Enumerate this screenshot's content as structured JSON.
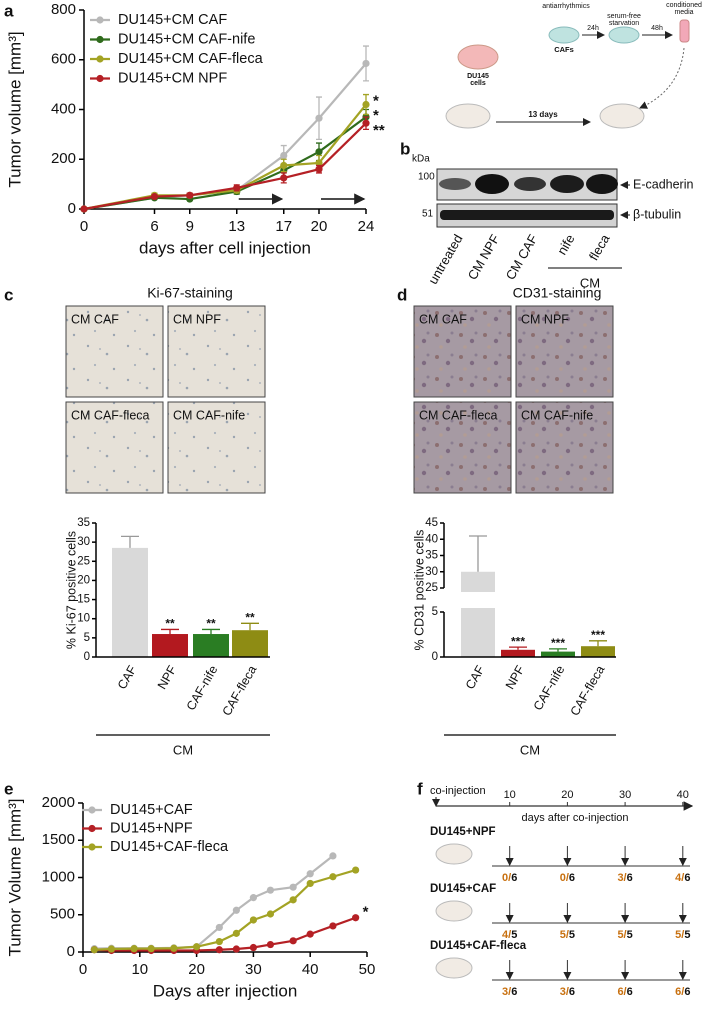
{
  "panel_labels": [
    "a",
    "b",
    "c",
    "d",
    "e",
    "f"
  ],
  "chart_data": [
    {
      "type": "line",
      "xlabel": "days after cell injection",
      "ylabel": "Tumor volume [mm³]",
      "x": [
        0,
        6,
        9,
        13,
        17,
        20,
        24
      ],
      "xlim": [
        0,
        24
      ],
      "xticks": [
        0,
        6,
        9,
        13,
        17,
        20,
        24
      ],
      "ylim": [
        0,
        800
      ],
      "yticks": [
        0,
        200,
        400,
        600,
        800
      ],
      "series": [
        {
          "name": "DU145+CM CAF",
          "color": "#b8b8b8",
          "values": [
            0,
            45,
            55,
            75,
            215,
            365,
            585
          ],
          "errors": [
            0,
            5,
            5,
            10,
            40,
            85,
            70
          ]
        },
        {
          "name": "DU145+CM CAF-nife",
          "color": "#2f6b1c",
          "values": [
            0,
            45,
            40,
            70,
            155,
            230,
            370
          ],
          "errors": [
            0,
            5,
            5,
            10,
            25,
            35,
            30
          ],
          "significance": "*"
        },
        {
          "name": "DU145+CM CAF-fleca",
          "color": "#a3a324",
          "values": [
            0,
            55,
            55,
            75,
            175,
            185,
            420
          ],
          "errors": [
            0,
            8,
            8,
            10,
            25,
            30,
            40
          ],
          "significance": "*"
        },
        {
          "name": "DU145+CM NPF",
          "color": "#b52025",
          "values": [
            0,
            50,
            55,
            85,
            125,
            160,
            345
          ],
          "errors": [
            0,
            5,
            8,
            12,
            20,
            15,
            25
          ],
          "significance": "**"
        }
      ]
    },
    {
      "type": "bar",
      "title": "Ki-67-staining",
      "image_labels": [
        "CM CAF",
        "CM NPF",
        "CM CAF-fleca",
        "CM CAF-nife"
      ],
      "ylabel": "% Ki-67 positive cells",
      "categories": [
        "CAF",
        "NPF",
        "CAF-nife",
        "CAF-fleca"
      ],
      "values": [
        28.5,
        6,
        6,
        7
      ],
      "errors": [
        3,
        1.2,
        1.2,
        1.8
      ],
      "significance": [
        null,
        "**",
        "**",
        "**"
      ],
      "colors": [
        "#d9d9d9",
        "#b3191f",
        "#2a7d23",
        "#8e8c14"
      ],
      "ylim": [
        0,
        35
      ],
      "yticks": [
        0,
        5,
        10,
        15,
        20,
        25,
        30,
        35
      ],
      "group_label": "CM"
    },
    {
      "type": "bar",
      "title": "CD31-staining",
      "image_labels": [
        "CM CAF",
        "CM NPF",
        "CM CAF-fleca",
        "CM CAF-nife"
      ],
      "ylabel": "% CD31 positive cells",
      "categories": [
        "CAF",
        "NPF",
        "CAF-nife",
        "CAF-fleca"
      ],
      "values": [
        30,
        0.8,
        0.6,
        1.2
      ],
      "errors": [
        11,
        0.3,
        0.3,
        0.6
      ],
      "significance": [
        null,
        "***",
        "***",
        "***"
      ],
      "colors": [
        "#d9d9d9",
        "#b3191f",
        "#2a7d23",
        "#8e8c14"
      ],
      "ylim": [
        0,
        45
      ],
      "yticks": [
        0,
        5,
        25,
        30,
        35,
        40,
        45
      ],
      "axis_break": [
        5,
        25
      ],
      "group_label": "CM"
    },
    {
      "type": "line",
      "xlabel": "Days after injection",
      "ylabel": "Tumor Volume [mm³]",
      "x": [
        2,
        5,
        9,
        12,
        16,
        20,
        24,
        27,
        30,
        33,
        37,
        40,
        44,
        48
      ],
      "xlim": [
        0,
        50
      ],
      "xticks": [
        0,
        10,
        20,
        30,
        40,
        50
      ],
      "ylim": [
        0,
        2000
      ],
      "yticks": [
        0,
        500,
        1000,
        1500,
        2000
      ],
      "series": [
        {
          "name": "DU145+CAF",
          "color": "#b8b8b8",
          "values": [
            45,
            50,
            50,
            50,
            55,
            70,
            330,
            560,
            730,
            830,
            870,
            1050,
            1290,
            null
          ]
        },
        {
          "name": "DU145+NPF",
          "color": "#b52025",
          "values": [
            30,
            20,
            20,
            20,
            20,
            20,
            30,
            40,
            60,
            100,
            150,
            240,
            350,
            460
          ],
          "significance": "*"
        },
        {
          "name": "DU145+CAF-fleca",
          "color": "#a3a324",
          "values": [
            30,
            40,
            45,
            45,
            50,
            70,
            140,
            250,
            430,
            510,
            700,
            920,
            1010,
            1100
          ]
        }
      ]
    }
  ],
  "panel_b": {
    "schematic": {
      "drug": "antiarrhythmics",
      "t1": "24h",
      "starvation": [
        "serum-free",
        "starvation"
      ],
      "t2": "48h",
      "media": [
        "conditioned",
        "media"
      ],
      "cafs": "CAFs",
      "cells": [
        "DU145",
        "cells"
      ],
      "days": "13 days"
    },
    "blot": {
      "unit": "kDa",
      "markers": [
        100,
        51
      ],
      "proteins": [
        "E-cadherin",
        "β-tubulin"
      ],
      "lanes": [
        "untreated",
        "CM NPF",
        "CM CAF",
        "nife",
        "fleca"
      ],
      "group": "CM"
    }
  },
  "panel_f": {
    "start": "co-injection",
    "ticks": [
      10,
      20,
      30,
      40
    ],
    "axis_label": "days after co-injection",
    "groups": [
      {
        "name": "DU145+NPF",
        "counts": [
          "0/6",
          "0/6",
          "3/6",
          "4/6"
        ]
      },
      {
        "name": "DU145+CAF",
        "counts": [
          "4/5",
          "5/5",
          "5/5",
          "5/5"
        ]
      },
      {
        "name": "DU145+CAF-fleca",
        "counts": [
          "3/6",
          "3/6",
          "6/6",
          "6/6"
        ]
      }
    ]
  }
}
